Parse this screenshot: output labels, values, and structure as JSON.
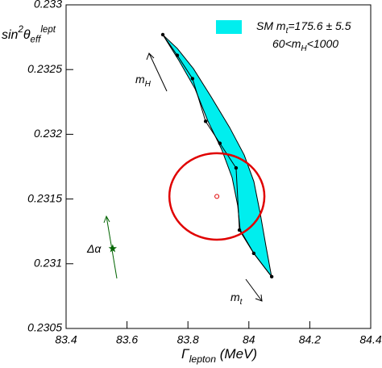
{
  "chart_data": {
    "type": "scatter",
    "xlim": [
      83.4,
      84.4
    ],
    "ylim": [
      0.2305,
      0.233
    ],
    "xticks": [
      83.4,
      83.6,
      83.8,
      84,
      84.2,
      84.4
    ],
    "yticks": [
      0.2305,
      0.231,
      0.2315,
      0.232,
      0.2325,
      0.233
    ],
    "x_label": [
      {
        "text": "Γ"
      },
      {
        "text": "lepton",
        "shift": "sub"
      },
      {
        "text": " (MeV)"
      }
    ],
    "y_label": [
      {
        "text": "sin"
      },
      {
        "text": "2",
        "shift": "sup"
      },
      {
        "text": "θ"
      },
      {
        "text": "eff",
        "shift": "sub"
      },
      {
        "text": "lept",
        "shift": "sup"
      }
    ],
    "legend": {
      "color": "#00eeee",
      "lines": [
        [
          {
            "text": "SM m"
          },
          {
            "text": "t",
            "shift": "sub"
          },
          {
            "text": "=175.6 ± 5.5"
          }
        ],
        [
          {
            "text": "60<m"
          },
          {
            "text": "H",
            "shift": "sub"
          },
          {
            "text": "<1000"
          }
        ]
      ]
    },
    "band": {
      "color": "#00eeee",
      "x": [
        83.7175,
        83.7704,
        83.8233,
        83.8656,
        83.9106,
        83.945,
        83.9635,
        83.9714,
        84.0164,
        84.0746,
        84.0561,
        84.0376,
        84.0164,
        83.9847,
        83.937,
        83.8762,
        83.818,
        83.7651
      ],
      "y": [
        0.232769,
        0.23257,
        0.232352,
        0.232102,
        0.231884,
        0.231666,
        0.231448,
        0.231261,
        0.23108,
        0.230899,
        0.231136,
        0.231385,
        0.231635,
        0.23184,
        0.232052,
        0.232289,
        0.232507,
        0.232663
      ]
    },
    "points": {
      "color": "#000000",
      "x": [
        83.7175,
        83.765,
        83.815,
        83.858,
        83.905,
        83.958,
        83.969,
        84.016,
        84.075
      ],
      "y": [
        0.23277,
        0.23261,
        0.23243,
        0.2321,
        0.23193,
        0.23174,
        0.23126,
        0.23108,
        0.2309
      ]
    },
    "ellipse": {
      "color": "#e00000",
      "center": [
        83.895,
        0.23152
      ],
      "radii": [
        0.156,
        0.000334
      ]
    },
    "star": {
      "color": "#006400",
      "x": 83.553,
      "y": 0.231117
    },
    "annotations": [
      [
        {
          "text": "m"
        },
        {
          "text": "H",
          "shift": "sub"
        }
      ],
      [
        {
          "text": "m"
        },
        {
          "text": "t",
          "shift": "sub"
        }
      ],
      [
        {
          "text": "Δα"
        }
      ]
    ]
  }
}
